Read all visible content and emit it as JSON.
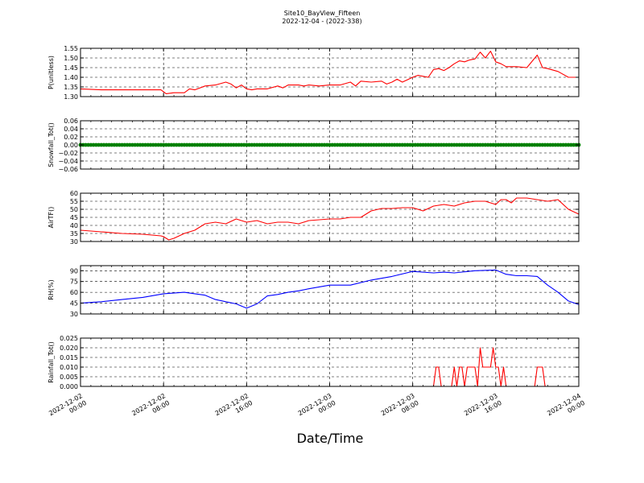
{
  "figure": {
    "title_line1": "Site10_BayView_Fifteen",
    "title_line2": "2022-12-04 - (2022-338)",
    "xlabel": "Date/Time"
  },
  "chart_data": {
    "type": "line",
    "x_ticks": [
      {
        "line1": "2022-12-02",
        "line2": "00:00"
      },
      {
        "line1": "2022-12-02",
        "line2": "08:00"
      },
      {
        "line1": "2022-12-02",
        "line2": "16:00"
      },
      {
        "line1": "2022-12-03",
        "line2": "00:00"
      },
      {
        "line1": "2022-12-03",
        "line2": "08:00"
      },
      {
        "line1": "2022-12-03",
        "line2": "16:00"
      },
      {
        "line1": "2022-12-04",
        "line2": "00:00"
      }
    ],
    "xlim": [
      "2022-12-02 00:00",
      "2022-12-04 00:00"
    ],
    "grid": true,
    "panels": [
      {
        "ylabel": "P(unitless)",
        "ylim": [
          1.3,
          1.55
        ],
        "yticks": [
          1.3,
          1.35,
          1.4,
          1.45,
          1.5,
          1.55
        ],
        "ytick_labels": [
          "1.30",
          "1.35",
          "1.40",
          "1.45",
          "1.50",
          "1.55"
        ],
        "series": [
          {
            "color": "#ff0000",
            "style": "line",
            "x": [
              "2022-12-02 00:00",
              "2022-12-02 02:00",
              "2022-12-02 04:00",
              "2022-12-02 06:00",
              "2022-12-02 07:45",
              "2022-12-02 08:15",
              "2022-12-02 09:00",
              "2022-12-02 10:00",
              "2022-12-02 10:30",
              "2022-12-02 11:00",
              "2022-12-02 12:00",
              "2022-12-02 13:00",
              "2022-12-02 14:00",
              "2022-12-02 14:30",
              "2022-12-02 15:00",
              "2022-12-02 15:30",
              "2022-12-02 16:00",
              "2022-12-02 16:30",
              "2022-12-02 17:00",
              "2022-12-02 18:00",
              "2022-12-02 19:00",
              "2022-12-02 19:30",
              "2022-12-02 20:00",
              "2022-12-02 21:00",
              "2022-12-02 21:30",
              "2022-12-02 22:00",
              "2022-12-02 23:00",
              "2022-12-03 00:00",
              "2022-12-03 01:00",
              "2022-12-03 02:00",
              "2022-12-03 02:30",
              "2022-12-03 03:00",
              "2022-12-03 04:00",
              "2022-12-03 05:00",
              "2022-12-03 05:30",
              "2022-12-03 06:00",
              "2022-12-03 06:30",
              "2022-12-03 07:00",
              "2022-12-03 08:00",
              "2022-12-03 08:30",
              "2022-12-03 09:30",
              "2022-12-03 10:00",
              "2022-12-03 10:30",
              "2022-12-03 11:00",
              "2022-12-03 11:30",
              "2022-12-03 12:00",
              "2022-12-03 12:30",
              "2022-12-03 13:00",
              "2022-12-03 13:30",
              "2022-12-03 14:00",
              "2022-12-03 14:30",
              "2022-12-03 15:00",
              "2022-12-03 15:30",
              "2022-12-03 16:00",
              "2022-12-03 16:30",
              "2022-12-03 17:00",
              "2022-12-03 18:00",
              "2022-12-03 19:00",
              "2022-12-03 20:00",
              "2022-12-03 20:30",
              "2022-12-03 21:00",
              "2022-12-03 22:00",
              "2022-12-03 23:00",
              "2022-12-04 00:00"
            ],
            "y": [
              1.34,
              1.335,
              1.335,
              1.335,
              1.335,
              1.315,
              1.32,
              1.32,
              1.34,
              1.335,
              1.355,
              1.36,
              1.375,
              1.365,
              1.345,
              1.36,
              1.34,
              1.335,
              1.34,
              1.34,
              1.355,
              1.345,
              1.36,
              1.36,
              1.355,
              1.36,
              1.355,
              1.36,
              1.36,
              1.375,
              1.355,
              1.38,
              1.375,
              1.38,
              1.365,
              1.375,
              1.39,
              1.375,
              1.4,
              1.41,
              1.4,
              1.44,
              1.445,
              1.435,
              1.45,
              1.47,
              1.485,
              1.48,
              1.49,
              1.495,
              1.53,
              1.5,
              1.535,
              1.48,
              1.47,
              1.455,
              1.455,
              1.45,
              1.515,
              1.45,
              1.445,
              1.43,
              1.4,
              1.4
            ]
          }
        ]
      },
      {
        "ylabel": "Snowfall_Tot()",
        "ylim": [
          -0.06,
          0.06
        ],
        "yticks": [
          -0.06,
          -0.04,
          -0.02,
          0.0,
          0.02,
          0.04,
          0.06
        ],
        "ytick_labels": [
          "−0.06",
          "−0.04",
          "−0.02",
          "0.00",
          "0.02",
          "0.04",
          "0.06"
        ],
        "series": [
          {
            "color": "#008000",
            "style": "markers",
            "constant": 0.0,
            "x_start": "2022-12-02 00:00",
            "x_end": "2022-12-04 00:00",
            "interval_minutes": 15
          }
        ]
      },
      {
        "ylabel": "AirTF()",
        "ylim": [
          30,
          60
        ],
        "yticks": [
          30,
          35,
          40,
          45,
          50,
          55,
          60
        ],
        "ytick_labels": [
          "30",
          "35",
          "40",
          "45",
          "50",
          "55",
          "60"
        ],
        "series": [
          {
            "color": "#ff0000",
            "style": "line",
            "x": [
              "2022-12-02 00:00",
              "2022-12-02 02:00",
              "2022-12-02 04:00",
              "2022-12-02 06:00",
              "2022-12-02 07:45",
              "2022-12-02 08:00",
              "2022-12-02 08:30",
              "2022-12-02 09:00",
              "2022-12-02 10:00",
              "2022-12-02 11:00",
              "2022-12-02 12:00",
              "2022-12-02 13:00",
              "2022-12-02 14:00",
              "2022-12-02 15:00",
              "2022-12-02 16:00",
              "2022-12-02 17:00",
              "2022-12-02 18:00",
              "2022-12-02 19:00",
              "2022-12-02 20:00",
              "2022-12-02 21:00",
              "2022-12-02 22:00",
              "2022-12-03 00:00",
              "2022-12-03 01:00",
              "2022-12-03 02:00",
              "2022-12-03 03:00",
              "2022-12-03 04:00",
              "2022-12-03 05:00",
              "2022-12-03 06:00",
              "2022-12-03 07:00",
              "2022-12-03 08:00",
              "2022-12-03 09:00",
              "2022-12-03 10:00",
              "2022-12-03 11:00",
              "2022-12-03 12:00",
              "2022-12-03 13:00",
              "2022-12-03 14:00",
              "2022-12-03 15:00",
              "2022-12-03 16:00",
              "2022-12-03 16:30",
              "2022-12-03 17:00",
              "2022-12-03 17:30",
              "2022-12-03 18:00",
              "2022-12-03 19:00",
              "2022-12-03 20:00",
              "2022-12-03 21:00",
              "2022-12-03 22:00",
              "2022-12-03 23:00",
              "2022-12-04 00:00"
            ],
            "y": [
              37,
              36,
              35,
              34.5,
              33.5,
              33,
              31,
              32,
              35,
              37,
              41,
              42,
              41,
              44,
              42,
              43,
              41,
              42,
              42,
              41,
              43,
              44,
              44,
              45,
              45,
              49,
              50.5,
              50.5,
              51,
              51,
              49,
              52,
              53,
              52,
              54,
              55,
              55,
              53,
              56,
              56,
              54,
              57,
              57,
              56,
              55,
              56,
              50,
              47
            ]
          }
        ]
      },
      {
        "ylabel": "RH(%)",
        "ylim": [
          30,
          97
        ],
        "yticks": [
          30,
          45,
          60,
          75,
          90
        ],
        "ytick_labels": [
          "30",
          "45",
          "60",
          "75",
          "90"
        ],
        "series": [
          {
            "color": "#0000ff",
            "style": "line",
            "x": [
              "2022-12-02 00:00",
              "2022-12-02 02:00",
              "2022-12-02 04:00",
              "2022-12-02 06:00",
              "2022-12-02 08:00",
              "2022-12-02 10:00",
              "2022-12-02 11:00",
              "2022-12-02 12:00",
              "2022-12-02 13:00",
              "2022-12-02 14:00",
              "2022-12-02 15:00",
              "2022-12-02 16:00",
              "2022-12-02 17:00",
              "2022-12-02 18:00",
              "2022-12-02 19:00",
              "2022-12-02 20:00",
              "2022-12-02 21:00",
              "2022-12-02 22:00",
              "2022-12-03 00:00",
              "2022-12-03 02:00",
              "2022-12-03 04:00",
              "2022-12-03 06:00",
              "2022-12-03 08:00",
              "2022-12-03 10:00",
              "2022-12-03 11:00",
              "2022-12-03 12:00",
              "2022-12-03 14:00",
              "2022-12-03 16:00",
              "2022-12-03 17:00",
              "2022-12-03 18:00",
              "2022-12-03 19:00",
              "2022-12-03 20:00",
              "2022-12-03 21:00",
              "2022-12-03 22:00",
              "2022-12-03 23:00",
              "2022-12-04 00:00"
            ],
            "y": [
              45,
              47,
              50,
              53,
              58,
              60,
              58,
              56,
              50,
              47,
              44,
              38,
              44,
              55,
              57,
              60,
              62,
              65,
              70,
              70,
              77,
              82,
              89,
              87,
              88,
              87,
              90,
              91,
              85,
              83,
              83,
              82,
              70,
              60,
              48,
              43
            ]
          }
        ]
      },
      {
        "ylabel": "Rainfall_Tot()",
        "ylim": [
          0.0,
          0.025
        ],
        "yticks": [
          0.0,
          0.005,
          0.01,
          0.015,
          0.02,
          0.025
        ],
        "ytick_labels": [
          "0.000",
          "0.005",
          "0.010",
          "0.015",
          "0.020",
          "0.025"
        ],
        "series": [
          {
            "color": "#ff0000",
            "style": "line",
            "x": [
              "2022-12-02 00:00",
              "2022-12-03 10:00",
              "2022-12-03 10:15",
              "2022-12-03 10:30",
              "2022-12-03 10:45",
              "2022-12-03 11:00",
              "2022-12-03 11:45",
              "2022-12-03 12:00",
              "2022-12-03 12:15",
              "2022-12-03 12:30",
              "2022-12-03 12:45",
              "2022-12-03 13:00",
              "2022-12-03 13:15",
              "2022-12-03 13:30",
              "2022-12-03 13:45",
              "2022-12-03 14:00",
              "2022-12-03 14:15",
              "2022-12-03 14:30",
              "2022-12-03 14:45",
              "2022-12-03 15:00",
              "2022-12-03 15:15",
              "2022-12-03 15:30",
              "2022-12-03 15:45",
              "2022-12-03 16:00",
              "2022-12-03 16:15",
              "2022-12-03 16:30",
              "2022-12-03 16:45",
              "2022-12-03 17:00",
              "2022-12-03 17:15",
              "2022-12-03 17:30",
              "2022-12-03 17:45",
              "2022-12-03 18:00",
              "2022-12-03 19:45",
              "2022-12-03 20:00",
              "2022-12-03 20:15",
              "2022-12-03 20:30",
              "2022-12-03 20:45",
              "2022-12-03 21:00",
              "2022-12-04 00:00"
            ],
            "y": [
              0,
              0,
              0.01,
              0.01,
              0,
              0,
              0,
              0.01,
              0,
              0.01,
              0.01,
              0,
              0.01,
              0.01,
              0.01,
              0.01,
              0,
              0.02,
              0.01,
              0.01,
              0.01,
              0.01,
              0.02,
              0.01,
              0.01,
              0,
              0.01,
              0,
              0,
              0,
              0,
              0,
              0,
              0.01,
              0.01,
              0.01,
              0,
              0,
              0
            ]
          }
        ]
      }
    ]
  }
}
